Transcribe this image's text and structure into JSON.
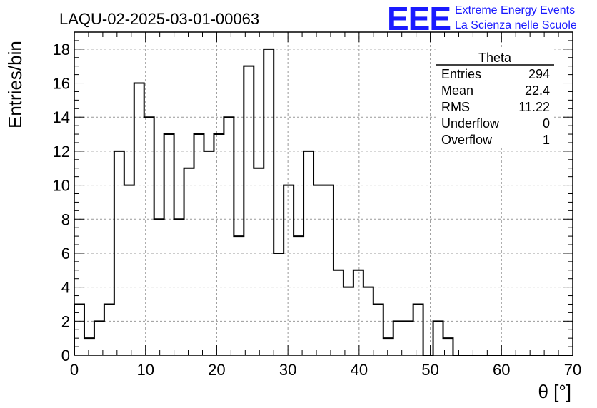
{
  "header": {
    "run_title": "LAQU-02-2025-03-01-00063",
    "logo_text": "EEE",
    "logo_line1": "Extreme Energy Events",
    "logo_line2": "La Scienza nelle Scuole"
  },
  "stats": {
    "title": "Theta",
    "rows": [
      {
        "label": "Entries",
        "value": "294"
      },
      {
        "label": "Mean",
        "value": "22.4"
      },
      {
        "label": "RMS",
        "value": "11.22"
      },
      {
        "label": "Underflow",
        "value": "0"
      },
      {
        "label": "Overflow",
        "value": "1"
      }
    ]
  },
  "colors": {
    "line": "#000000",
    "grid": "#999999",
    "logo": "#1a1aff"
  },
  "chart_data": {
    "type": "bar",
    "xlabel": "θ [°]",
    "ylabel": "Entries/bin",
    "xlim": [
      0,
      70
    ],
    "ylim": [
      0,
      19
    ],
    "xticks": [
      0,
      10,
      20,
      30,
      40,
      50,
      60,
      70
    ],
    "yticks": [
      0,
      2,
      4,
      6,
      8,
      10,
      12,
      14,
      16,
      18
    ],
    "grid": true,
    "bin_width": 1.4,
    "bin_start": 0,
    "values": [
      3,
      1,
      2,
      3,
      12,
      10,
      16,
      14,
      8,
      13,
      8,
      11,
      13,
      12,
      13,
      14,
      7,
      17,
      11,
      18,
      6,
      10,
      7,
      12,
      10,
      10,
      5,
      4,
      5,
      4,
      3,
      1,
      2,
      2,
      3,
      0,
      2,
      1,
      0,
      0,
      0,
      0,
      0,
      0,
      0,
      0,
      0,
      0,
      0,
      0
    ]
  }
}
